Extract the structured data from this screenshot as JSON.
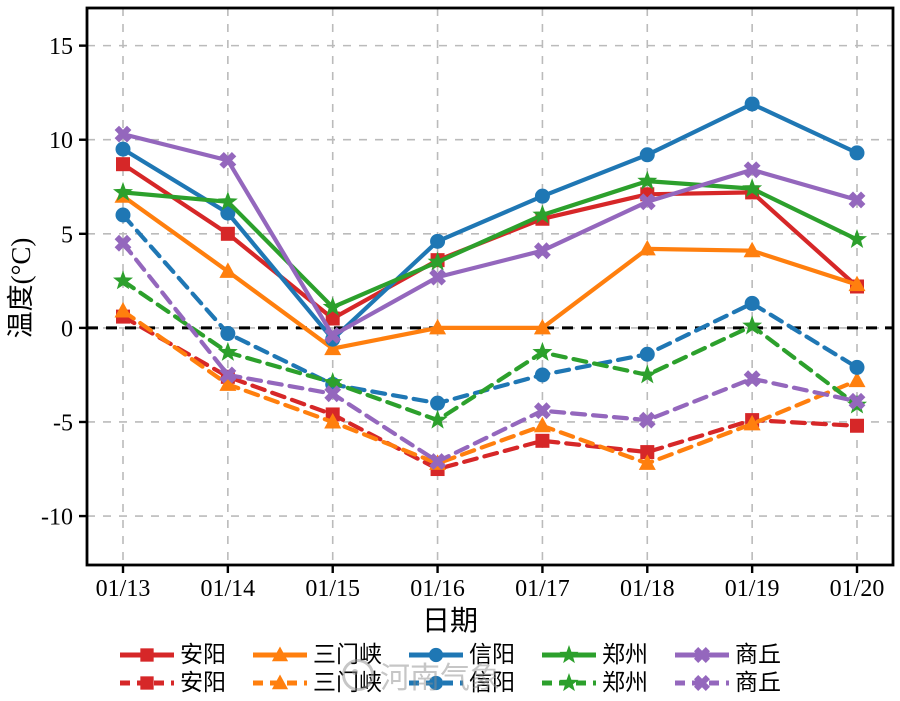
{
  "chart_data": {
    "type": "line",
    "title": "",
    "xlabel": "日期",
    "ylabel": "温度(°C)",
    "x_categories": [
      "01/13",
      "01/14",
      "01/15",
      "01/16",
      "01/17",
      "01/18",
      "01/19",
      "01/20"
    ],
    "y_ticks": [
      {
        "label": "15",
        "value": 15
      },
      {
        "label": "10",
        "value": 10
      },
      {
        "label": "5",
        "value": 5
      },
      {
        "label": "0",
        "value": 0
      },
      {
        "label": "-5",
        "value": -5
      },
      {
        "label": "-10",
        "value": -10
      }
    ],
    "ylim": [
      -12.6,
      17.0
    ],
    "grid": true,
    "grid_color": "#bbbbbb",
    "zero_line": {
      "value": 0,
      "color": "#000000",
      "style": "dashed"
    },
    "legend_position": "bottom",
    "legend_rows": 2,
    "watermark": "河南气象",
    "series": [
      {
        "name": "安阳",
        "style": "solid",
        "marker": "square",
        "color": "#d62728",
        "values": [
          8.7,
          5.0,
          0.5,
          3.6,
          5.8,
          7.1,
          7.2,
          2.2
        ]
      },
      {
        "name": "安阳",
        "style": "dashed",
        "marker": "square",
        "color": "#d62728",
        "values": [
          0.6,
          -2.6,
          -4.6,
          -7.5,
          -6.0,
          -6.6,
          -4.9,
          -5.2
        ]
      },
      {
        "name": "三门峡",
        "style": "solid",
        "marker": "triangle",
        "color": "#ff7f0e",
        "values": [
          7.0,
          3.0,
          -1.1,
          0.0,
          0.0,
          4.2,
          4.1,
          2.3
        ]
      },
      {
        "name": "三门峡",
        "style": "dashed",
        "marker": "triangle",
        "color": "#ff7f0e",
        "values": [
          0.9,
          -3.0,
          -5.0,
          -7.2,
          -5.2,
          -7.2,
          -5.1,
          -2.8
        ]
      },
      {
        "name": "信阳",
        "style": "solid",
        "marker": "circle",
        "color": "#1f77b4",
        "values": [
          9.5,
          6.1,
          -0.6,
          4.6,
          7.0,
          9.2,
          11.9,
          9.3
        ]
      },
      {
        "name": "信阳",
        "style": "dashed",
        "marker": "circle",
        "color": "#1f77b4",
        "values": [
          6.0,
          -0.3,
          -3.0,
          -4.0,
          -2.5,
          -1.4,
          1.3,
          -2.1
        ]
      },
      {
        "name": "郑州",
        "style": "solid",
        "marker": "star",
        "color": "#2ca02c",
        "values": [
          7.2,
          6.7,
          1.1,
          3.5,
          6.0,
          7.8,
          7.4,
          4.7
        ]
      },
      {
        "name": "郑州",
        "style": "dashed",
        "marker": "star",
        "color": "#2ca02c",
        "values": [
          2.5,
          -1.3,
          -2.9,
          -4.9,
          -1.3,
          -2.5,
          0.1,
          -4.1
        ]
      },
      {
        "name": "商丘",
        "style": "solid",
        "marker": "x",
        "color": "#9467bd",
        "values": [
          10.3,
          8.9,
          -0.4,
          2.7,
          4.1,
          6.7,
          8.4,
          6.8
        ]
      },
      {
        "name": "商丘",
        "style": "dashed",
        "marker": "x",
        "color": "#9467bd",
        "values": [
          4.5,
          -2.5,
          -3.5,
          -7.1,
          -4.4,
          -4.9,
          -2.7,
          -3.9
        ]
      }
    ]
  }
}
